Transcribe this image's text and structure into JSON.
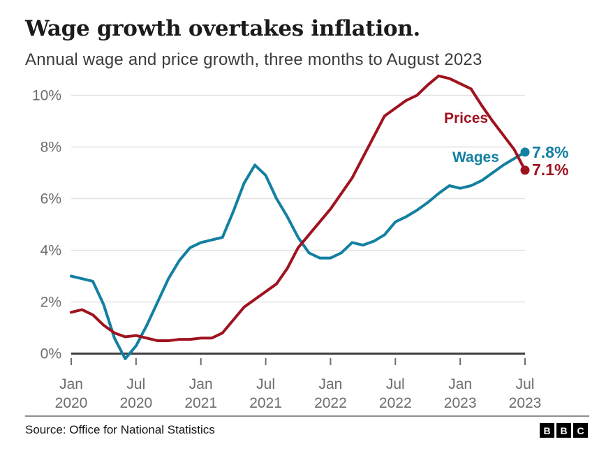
{
  "header": {
    "title": "Wage growth overtakes inflation.",
    "subtitle": "Annual wage and price growth, three months to August 2023"
  },
  "chart_data": {
    "type": "line",
    "title": "Wage growth overtakes inflation.",
    "subtitle": "Annual wage and price growth, three months to August 2023",
    "grid": true,
    "legend_position": "inline-labels-and-end-values",
    "x": [
      "Jan 2020",
      "Feb 2020",
      "Mar 2020",
      "Apr 2020",
      "May 2020",
      "Jun 2020",
      "Jul 2020",
      "Aug 2020",
      "Sep 2020",
      "Oct 2020",
      "Nov 2020",
      "Dec 2020",
      "Jan 2021",
      "Feb 2021",
      "Mar 2021",
      "Apr 2021",
      "May 2021",
      "Jun 2021",
      "Jul 2021",
      "Aug 2021",
      "Sep 2021",
      "Oct 2021",
      "Nov 2021",
      "Dec 2021",
      "Jan 2022",
      "Feb 2022",
      "Mar 2022",
      "Apr 2022",
      "May 2022",
      "Jun 2022",
      "Jul 2022",
      "Aug 2022",
      "Sep 2022",
      "Oct 2022",
      "Nov 2022",
      "Dec 2022",
      "Jan 2023",
      "Feb 2023",
      "Mar 2023",
      "Apr 2023",
      "May 2023",
      "Jun 2023",
      "Jul 2023"
    ],
    "series": [
      {
        "name": "Wages",
        "color": "#1380a1",
        "end_label": "7.8%",
        "end_value": 7.8,
        "values": [
          3.0,
          2.9,
          2.8,
          1.9,
          0.6,
          -0.2,
          0.3,
          1.1,
          2.0,
          2.9,
          3.6,
          4.1,
          4.3,
          4.4,
          4.5,
          5.5,
          6.6,
          7.3,
          6.9,
          6.0,
          5.3,
          4.5,
          3.9,
          3.7,
          3.7,
          3.9,
          4.3,
          4.2,
          4.35,
          4.6,
          5.1,
          5.3,
          5.55,
          5.85,
          6.2,
          6.5,
          6.4,
          6.5,
          6.7,
          7.0,
          7.3,
          7.55,
          7.8
        ]
      },
      {
        "name": "Prices",
        "color": "#9f131f",
        "end_label": "7.1%",
        "end_value": 7.1,
        "values": [
          1.6,
          1.7,
          1.5,
          1.1,
          0.8,
          0.65,
          0.7,
          0.6,
          0.5,
          0.5,
          0.55,
          0.55,
          0.6,
          0.6,
          0.8,
          1.3,
          1.8,
          2.1,
          2.4,
          2.7,
          3.3,
          4.1,
          4.6,
          5.1,
          5.6,
          6.2,
          6.8,
          7.6,
          8.4,
          9.2,
          9.5,
          9.8,
          10.0,
          10.4,
          10.75,
          10.65,
          10.45,
          10.25,
          9.6,
          9.0,
          8.45,
          7.9,
          7.1
        ]
      }
    ],
    "y_axis": {
      "unit": "percent",
      "ylim": [
        -0.5,
        11
      ],
      "ticks": [
        {
          "label": "0%",
          "value": 0
        },
        {
          "label": "2%",
          "value": 2
        },
        {
          "label": "4%",
          "value": 4
        },
        {
          "label": "6%",
          "value": 6
        },
        {
          "label": "8%",
          "value": 8
        },
        {
          "label": "10%",
          "value": 10
        }
      ]
    },
    "x_axis": {
      "ticks": [
        {
          "index": 0,
          "month": "Jan",
          "year": "2020"
        },
        {
          "index": 6,
          "month": "Jul",
          "year": "2020"
        },
        {
          "index": 12,
          "month": "Jan",
          "year": "2021"
        },
        {
          "index": 18,
          "month": "Jul",
          "year": "2021"
        },
        {
          "index": 24,
          "month": "Jan",
          "year": "2022"
        },
        {
          "index": 30,
          "month": "Jul",
          "year": "2022"
        },
        {
          "index": 36,
          "month": "Jan",
          "year": "2023"
        },
        {
          "index": 42,
          "month": "Jul",
          "year": "2023"
        }
      ]
    }
  },
  "footer": {
    "source": "Source: Office for National Statistics",
    "logo_letters": [
      "B",
      "B",
      "C"
    ]
  }
}
